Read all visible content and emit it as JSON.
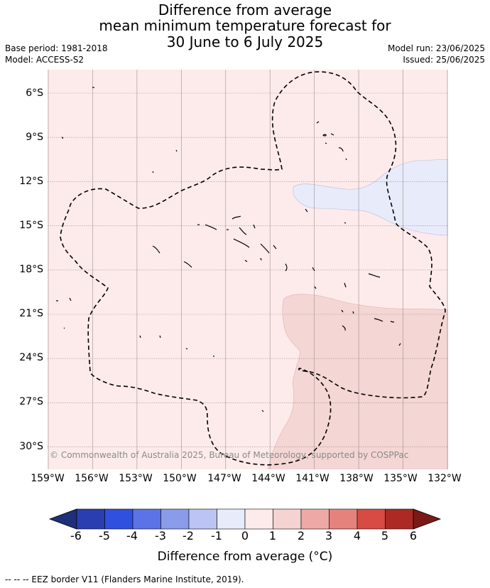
{
  "title": {
    "line1": "Difference from average",
    "line2": "mean minimum temperature forecast for",
    "line3": "30 June to 6 July 2025"
  },
  "meta": {
    "base_period": "Base period: 1981-2018",
    "model": "Model: ACCESS-S2",
    "model_run": "Model run: 23/06/2025",
    "issued": "Issued: 25/06/2025"
  },
  "map": {
    "lat_labels": [
      "6°S",
      "9°S",
      "12°S",
      "15°S",
      "18°S",
      "21°S",
      "24°S",
      "27°S",
      "30°S"
    ],
    "lon_labels": [
      "159°W",
      "156°W",
      "153°W",
      "150°W",
      "147°W",
      "144°W",
      "141°W",
      "138°W",
      "135°W",
      "132°W"
    ],
    "copyright": "© Commonwealth of Australia 2025, Bureau of Meteorology, supported by COSPPac",
    "colors": {
      "background_0_to_1": "#fcebea",
      "region_1_to_2": "#f4d6d4",
      "region_minus1_to_0": "#e8ebfa",
      "grid": "#9a8f8f"
    }
  },
  "colorbar": {
    "ticks": [
      "-6",
      "-5",
      "-4",
      "-3",
      "-2",
      "-1",
      "0",
      "1",
      "2",
      "3",
      "4",
      "5",
      "6"
    ],
    "colors": [
      "#2a3eb1",
      "#3050e0",
      "#5b73e6",
      "#8a9be9",
      "#bcc4f3",
      "#e8ebfa",
      "#fcebea",
      "#f4d3d2",
      "#eda9a6",
      "#e5827c",
      "#d84a44",
      "#ad2a24"
    ],
    "under_color": "#1f2f7a",
    "over_color": "#7a1a18",
    "title": "Difference from average (°C)"
  },
  "footer": "-- -- -- EEZ border V11 (Flanders Marine Institute, 2019)."
}
